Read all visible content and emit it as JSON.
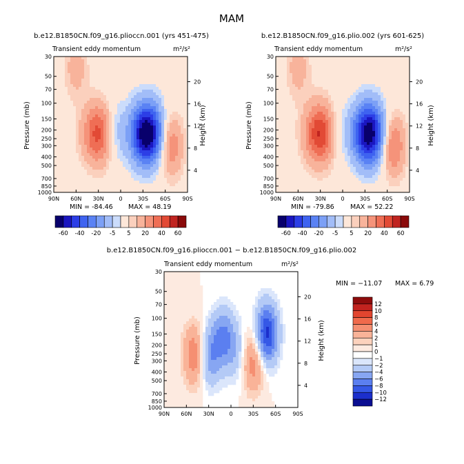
{
  "figure": {
    "title": "MAM"
  },
  "colors": {
    "top_levels": [
      -60,
      -40,
      -20,
      -5,
      5,
      20,
      40,
      60
    ],
    "top_palette": [
      "#08006c",
      "#1a16c0",
      "#2c3ee6",
      "#3e63f0",
      "#5a82f4",
      "#7ca0f6",
      "#a2bdf8",
      "#cbdcfb",
      "#fde7d9",
      "#fbd0bd",
      "#f8b39b",
      "#f5937a",
      "#ef6e55",
      "#e24a35",
      "#c02420",
      "#8a0a0a"
    ],
    "diff_levels": [
      12,
      10,
      8,
      6,
      4,
      2,
      1,
      0,
      -1,
      -2,
      -4,
      -6,
      -8,
      -10,
      -12
    ],
    "diff_palette": [
      "#8e0c0c",
      "#c2231f",
      "#e2452f",
      "#f06a4c",
      "#f58f72",
      "#f9b398",
      "#fcd2bd",
      "#fdeae0",
      "#ffffff",
      "#dbe6fb",
      "#b4caf6",
      "#87a6f2",
      "#5b7ff0",
      "#3558e6",
      "#1c2fcc",
      "#0a0e92"
    ]
  },
  "chart_data": [
    {
      "type": "heatmap",
      "name": "control",
      "title": "b.e12.B1850CN.f09_g16.plioccn.001 (yrs 451-475)",
      "subtitle": "Transient eddy momentum",
      "units": "m²/s²",
      "ylabel": "Pressure (mb)",
      "ylabel_right": "Height (km)",
      "x_ticks": [
        "90N",
        "60N",
        "30N",
        "0",
        "30S",
        "60S",
        "90S"
      ],
      "y_ticks": [
        "30",
        "50",
        "70",
        "100",
        "150",
        "200",
        "250",
        "300",
        "400",
        "500",
        "700",
        "850",
        "1000"
      ],
      "height_ticks": [
        "4",
        "8",
        "12",
        "16",
        "20"
      ],
      "xlim": [
        90,
        -90
      ],
      "ylim": [
        1000,
        30
      ],
      "min_label": "MIN = -84.46",
      "max_label": "MAX = 48.19",
      "features": [
        {
          "lat": 30,
          "p": 220,
          "value": 45
        },
        {
          "lat": 60,
          "p": 40,
          "value": 15
        },
        {
          "lat": -35,
          "p": 220,
          "value": -84
        },
        {
          "lat": 8,
          "p": 210,
          "value": -18
        },
        {
          "lat": -68,
          "p": 300,
          "value": 30
        }
      ]
    },
    {
      "type": "heatmap",
      "name": "pliocene",
      "title": "b.e12.B1850CN.f09_g16.plio.002 (yrs 601-625)",
      "subtitle": "Transient eddy momentum",
      "units": "m²/s²",
      "ylabel": "Pressure (mb)",
      "ylabel_right": "Height (km)",
      "x_ticks": [
        "90N",
        "60N",
        "30N",
        "0",
        "30S",
        "60S",
        "90S"
      ],
      "y_ticks": [
        "30",
        "50",
        "70",
        "100",
        "150",
        "200",
        "250",
        "300",
        "400",
        "500",
        "700",
        "850",
        "1000"
      ],
      "height_ticks": [
        "4",
        "8",
        "12",
        "16",
        "20"
      ],
      "xlim": [
        90,
        -90
      ],
      "ylim": [
        1000,
        30
      ],
      "min_label": "MIN = -79.86",
      "max_label": "MAX = 52.22",
      "features": [
        {
          "lat": 30,
          "p": 220,
          "value": 52
        },
        {
          "lat": 60,
          "p": 40,
          "value": 15
        },
        {
          "lat": -35,
          "p": 220,
          "value": -80
        },
        {
          "lat": 8,
          "p": 210,
          "value": -12
        },
        {
          "lat": -68,
          "p": 300,
          "value": 35
        }
      ]
    },
    {
      "type": "heatmap",
      "name": "difference",
      "title": "b.e12.B1850CN.f09_g16.plioccn.001 − b.e12.B1850CN.f09_g16.plio.002",
      "subtitle": "Transient eddy momentum",
      "units": "m²/s²",
      "ylabel": "Pressure (mb)",
      "ylabel_right": "Height (km)",
      "x_ticks": [
        "90N",
        "60N",
        "30N",
        "0",
        "30S",
        "60S",
        "90S"
      ],
      "y_ticks": [
        "30",
        "50",
        "70",
        "100",
        "150",
        "200",
        "250",
        "300",
        "400",
        "500",
        "700",
        "850",
        "1000"
      ],
      "height_ticks": [
        "4",
        "8",
        "12",
        "16",
        "20"
      ],
      "xlim": [
        90,
        -90
      ],
      "ylim": [
        1000,
        30
      ],
      "min_label": "MIN = −11.07",
      "max_label": "MAX =    6.79",
      "features": [
        {
          "lat": 48,
          "p": 260,
          "value": 6.5
        },
        {
          "lat": 30,
          "p": 270,
          "value": -6
        },
        {
          "lat": 10,
          "p": 160,
          "value": -6
        },
        {
          "lat": -48,
          "p": 150,
          "value": -11
        },
        {
          "lat": -30,
          "p": 300,
          "value": 6
        },
        {
          "lat": -8,
          "p": 250,
          "value": -3
        }
      ]
    }
  ]
}
